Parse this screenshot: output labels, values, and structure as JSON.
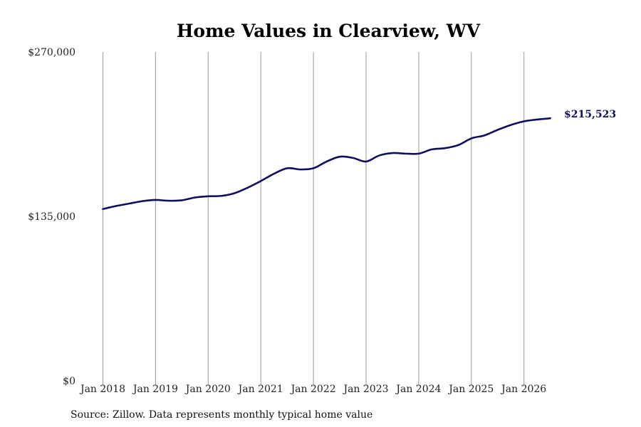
{
  "chart_data": {
    "type": "line",
    "title": "Home Values in Clearview, WV",
    "xlabel": "",
    "ylabel": "",
    "ylim": [
      0,
      270000
    ],
    "yticks": [
      {
        "value": 0,
        "label": "$0"
      },
      {
        "value": 135000,
        "label": "$135,000"
      },
      {
        "value": 270000,
        "label": "$270,000"
      }
    ],
    "xticks": [
      {
        "value": "2018-01",
        "label": "Jan 2018"
      },
      {
        "value": "2019-01",
        "label": "Jan 2019"
      },
      {
        "value": "2020-01",
        "label": "Jan 2020"
      },
      {
        "value": "2021-01",
        "label": "Jan 2021"
      },
      {
        "value": "2022-01",
        "label": "Jan 2022"
      },
      {
        "value": "2023-01",
        "label": "Jan 2023"
      },
      {
        "value": "2024-01",
        "label": "Jan 2024"
      },
      {
        "value": "2025-01",
        "label": "Jan 2025"
      },
      {
        "value": "2026-01",
        "label": "Jan 2026"
      }
    ],
    "grid": "vertical",
    "line_color": "#0e0e5c",
    "series": [
      {
        "x": [
          "2018-01",
          "2018-04",
          "2018-07",
          "2018-10",
          "2019-01",
          "2019-04",
          "2019-07",
          "2019-10",
          "2020-01",
          "2020-04",
          "2020-07",
          "2020-10",
          "2021-01",
          "2021-04",
          "2021-07",
          "2021-10",
          "2022-01",
          "2022-04",
          "2022-07",
          "2022-10",
          "2023-01",
          "2023-04",
          "2023-07",
          "2023-10",
          "2024-01",
          "2024-04",
          "2024-07",
          "2024-10",
          "2025-01",
          "2025-04",
          "2025-07",
          "2025-10",
          "2026-01",
          "2026-04",
          "2026-07"
        ],
        "values": [
          141000,
          143500,
          145500,
          147500,
          148500,
          147800,
          148200,
          150500,
          151500,
          151800,
          154000,
          158500,
          164000,
          170000,
          174500,
          173500,
          174500,
          180000,
          184000,
          183000,
          180000,
          185000,
          187000,
          186500,
          186500,
          190000,
          191000,
          193500,
          199000,
          201500,
          206000,
          210000,
          213000,
          214500,
          215523
        ]
      }
    ],
    "end_label": "$215,523",
    "source": "Source: Zillow. Data represents monthly typical home value"
  }
}
